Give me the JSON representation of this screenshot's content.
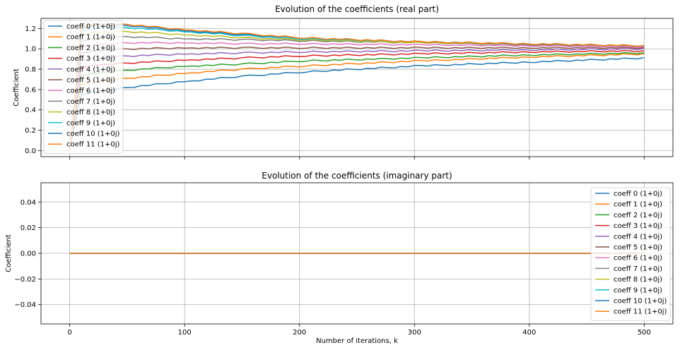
{
  "chart_data": [
    {
      "type": "line",
      "title": "Evolution of the coefficients (real part)",
      "xlabel": "",
      "ylabel": "Coefficient",
      "xlim": [
        -25,
        525
      ],
      "ylim": [
        -0.06,
        1.3
      ],
      "xticks": [
        0,
        100,
        200,
        300,
        400,
        500
      ],
      "xtick_labels_visible": false,
      "yticks": [
        0.0,
        0.2,
        0.4,
        0.6,
        0.8,
        1.0,
        1.2
      ],
      "ytick_labels": [
        "0.0",
        "0.2",
        "0.4",
        "0.6",
        "0.8",
        "1.0",
        "1.2"
      ],
      "grid": true,
      "legend_placement": "upper left",
      "x": [
        0,
        10,
        25,
        50,
        100,
        150,
        200,
        300,
        400,
        500
      ],
      "series": [
        {
          "name": "coeff 0 (1+0j)",
          "color": "#1f77b4",
          "values": [
            0.0,
            0.55,
            0.58,
            0.62,
            0.68,
            0.73,
            0.77,
            0.83,
            0.87,
            0.91
          ]
        },
        {
          "name": "coeff 1 (1+0j)",
          "color": "#ff7f0e",
          "values": [
            0.0,
            0.65,
            0.68,
            0.71,
            0.76,
            0.8,
            0.83,
            0.88,
            0.92,
            0.95
          ]
        },
        {
          "name": "coeff 2 (1+0j)",
          "color": "#2ca02c",
          "values": [
            0.0,
            0.74,
            0.76,
            0.79,
            0.83,
            0.85,
            0.88,
            0.91,
            0.94,
            0.96
          ]
        },
        {
          "name": "coeff 3 (1+0j)",
          "color": "#d62728",
          "values": [
            0.0,
            0.82,
            0.84,
            0.86,
            0.89,
            0.91,
            0.93,
            0.95,
            0.97,
            0.98
          ]
        },
        {
          "name": "coeff 4 (1+0j)",
          "color": "#9467bd",
          "values": [
            0.0,
            0.89,
            0.91,
            0.93,
            0.95,
            0.96,
            0.97,
            0.98,
            0.99,
            1.0
          ]
        },
        {
          "name": "coeff 5 (1+0j)",
          "color": "#8c564b",
          "values": [
            0.0,
            0.96,
            0.98,
            1.0,
            1.01,
            1.01,
            1.01,
            1.01,
            1.01,
            1.01
          ]
        },
        {
          "name": "coeff 6 (1+0j)",
          "color": "#e377c2",
          "values": [
            0.0,
            1.02,
            1.04,
            1.06,
            1.06,
            1.05,
            1.05,
            1.04,
            1.03,
            1.02
          ]
        },
        {
          "name": "coeff 7 (1+0j)",
          "color": "#7f7f7f",
          "values": [
            0.0,
            1.08,
            1.1,
            1.12,
            1.1,
            1.09,
            1.08,
            1.06,
            1.04,
            1.03
          ]
        },
        {
          "name": "coeff 8 (1+0j)",
          "color": "#bcbd22",
          "values": [
            0.0,
            1.14,
            1.16,
            1.17,
            1.14,
            1.11,
            1.09,
            1.06,
            1.05,
            1.03
          ]
        },
        {
          "name": "coeff 9 (1+0j)",
          "color": "#17becf",
          "values": [
            0.0,
            1.18,
            1.2,
            1.21,
            1.17,
            1.13,
            1.1,
            1.07,
            1.05,
            1.03
          ]
        },
        {
          "name": "coeff 10 (1+0j)",
          "color": "#1f77b4",
          "values": [
            0.0,
            1.21,
            1.23,
            1.23,
            1.18,
            1.14,
            1.11,
            1.07,
            1.05,
            1.03
          ]
        },
        {
          "name": "coeff 11 (1+0j)",
          "color": "#ff7f0e",
          "values": [
            0.0,
            1.22,
            1.24,
            1.24,
            1.19,
            1.15,
            1.11,
            1.07,
            1.05,
            1.03
          ]
        }
      ]
    },
    {
      "type": "line",
      "title": "Evolution of the coefficients (imaginary part)",
      "xlabel": "Number of iterations, k",
      "ylabel": "Coefficient",
      "xlim": [
        -25,
        525
      ],
      "ylim": [
        -0.055,
        0.055
      ],
      "xticks": [
        0,
        100,
        200,
        300,
        400,
        500
      ],
      "xtick_labels": [
        "0",
        "100",
        "200",
        "300",
        "400",
        "500"
      ],
      "yticks": [
        -0.04,
        -0.02,
        0.0,
        0.02,
        0.04
      ],
      "ytick_labels": [
        "−0.04",
        "−0.02",
        "0.00",
        "0.02",
        "0.04"
      ],
      "grid": true,
      "legend_placement": "upper right",
      "x": [
        0,
        500
      ],
      "series": [
        {
          "name": "coeff 0 (1+0j)",
          "color": "#1f77b4",
          "values": [
            0,
            0
          ]
        },
        {
          "name": "coeff 1 (1+0j)",
          "color": "#ff7f0e",
          "values": [
            0,
            0
          ]
        },
        {
          "name": "coeff 2 (1+0j)",
          "color": "#2ca02c",
          "values": [
            0,
            0
          ]
        },
        {
          "name": "coeff 3 (1+0j)",
          "color": "#d62728",
          "values": [
            0,
            0
          ]
        },
        {
          "name": "coeff 4 (1+0j)",
          "color": "#9467bd",
          "values": [
            0,
            0
          ]
        },
        {
          "name": "coeff 5 (1+0j)",
          "color": "#8c564b",
          "values": [
            0,
            0
          ]
        },
        {
          "name": "coeff 6 (1+0j)",
          "color": "#e377c2",
          "values": [
            0,
            0
          ]
        },
        {
          "name": "coeff 7 (1+0j)",
          "color": "#7f7f7f",
          "values": [
            0,
            0
          ]
        },
        {
          "name": "coeff 8 (1+0j)",
          "color": "#bcbd22",
          "values": [
            0,
            0
          ]
        },
        {
          "name": "coeff 9 (1+0j)",
          "color": "#17becf",
          "values": [
            0,
            0
          ]
        },
        {
          "name": "coeff 10 (1+0j)",
          "color": "#1f77b4",
          "values": [
            0,
            0
          ]
        },
        {
          "name": "coeff 11 (1+0j)",
          "color": "#ff7f0e",
          "values": [
            0,
            0
          ]
        }
      ]
    }
  ]
}
